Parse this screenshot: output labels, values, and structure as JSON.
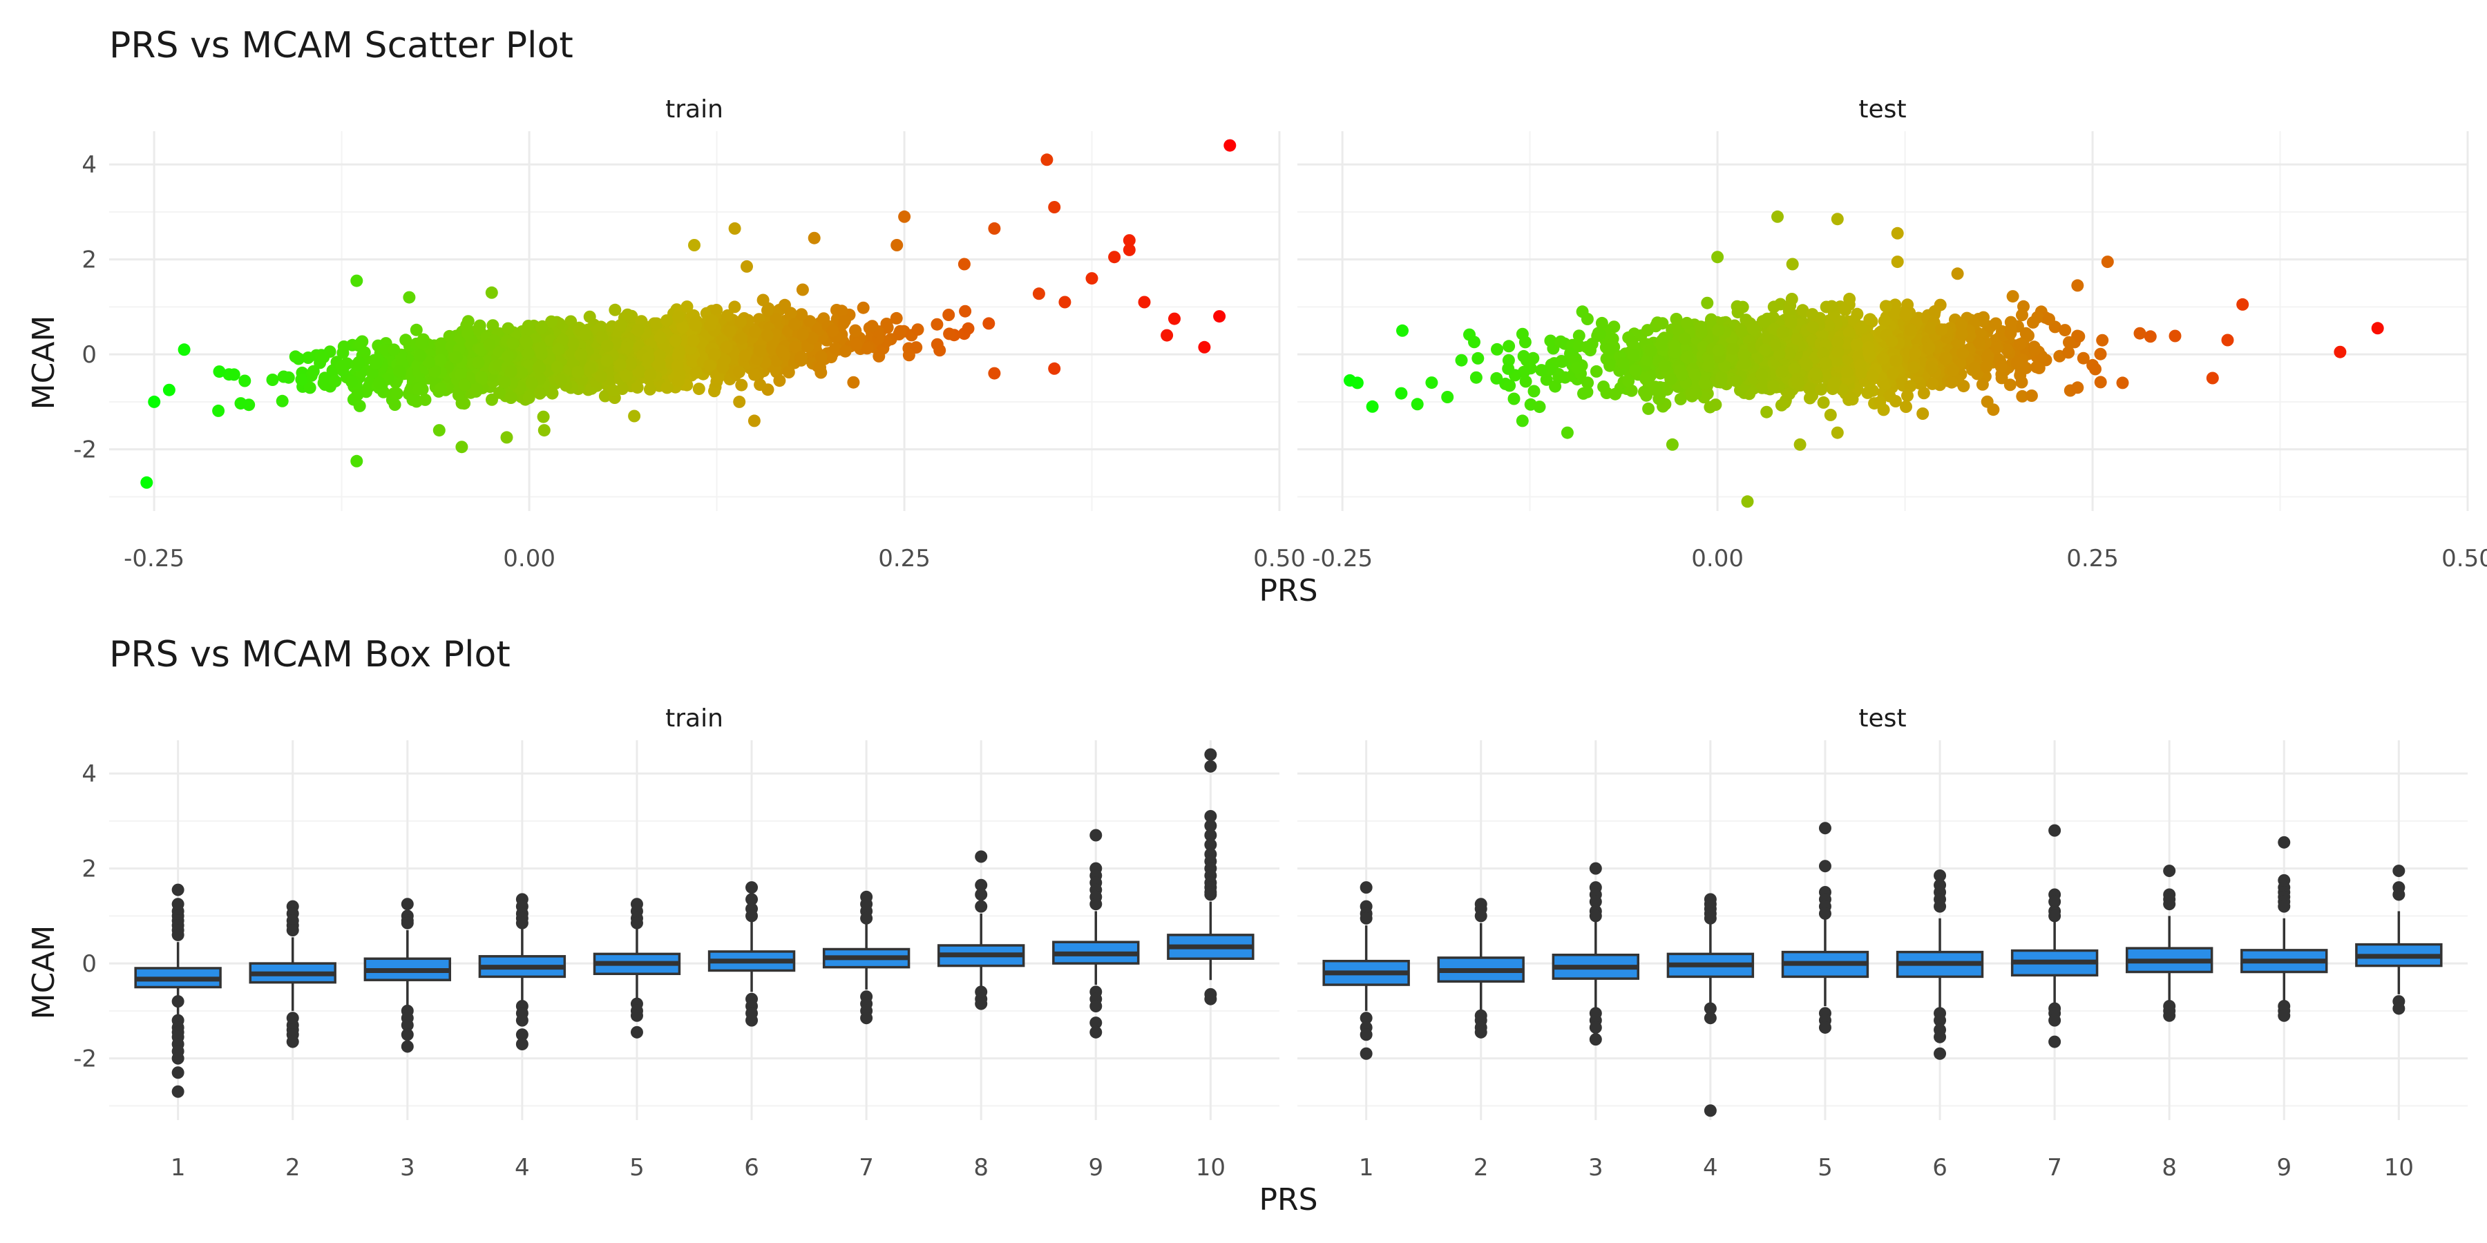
{
  "chart_data": [
    {
      "type": "scatter",
      "title": "PRS vs MCAM Scatter Plot",
      "xlabel": "PRS",
      "ylabel": "MCAM",
      "xlim": [
        -0.28,
        0.5
      ],
      "ylim": [
        -3.3,
        4.7
      ],
      "x_ticks": [
        -0.25,
        0.0,
        0.25,
        0.5
      ],
      "x_tick_labels": [
        "-0.25",
        "0.00",
        "0.25",
        "0.50"
      ],
      "y_ticks": [
        -2,
        0,
        2,
        4
      ],
      "y_tick_labels": [
        "-2",
        "0",
        "2",
        "4"
      ],
      "grid": true,
      "color_scale": {
        "low": "#00ff00",
        "mid": "#c0b000",
        "high": "#ff0000",
        "domain": [
          -0.26,
          0.47
        ]
      },
      "panels": [
        {
          "name": "train",
          "cloud": {
            "x_mean": 0.05,
            "x_sd": 0.08,
            "slope": 2.0,
            "noise_sd": 0.32,
            "n": 2600
          },
          "outliers": [
            [
              0.467,
              4.4
            ],
            [
              0.345,
              4.1
            ],
            [
              0.35,
              3.1
            ],
            [
              0.25,
              2.9
            ],
            [
              0.31,
              2.65
            ],
            [
              0.137,
              2.65
            ],
            [
              0.4,
              2.4
            ],
            [
              0.4,
              2.2
            ],
            [
              0.39,
              2.05
            ],
            [
              0.245,
              2.3
            ],
            [
              0.19,
              2.45
            ],
            [
              0.11,
              2.3
            ],
            [
              0.145,
              1.85
            ],
            [
              0.29,
              1.9
            ],
            [
              0.375,
              1.6
            ],
            [
              0.41,
              1.1
            ],
            [
              0.357,
              1.1
            ],
            [
              0.46,
              0.8
            ],
            [
              0.43,
              0.75
            ],
            [
              0.425,
              0.4
            ],
            [
              0.45,
              0.15
            ],
            [
              0.35,
              -0.3
            ],
            [
              0.14,
              -1.0
            ],
            [
              0.15,
              -1.4
            ],
            [
              -0.115,
              1.55
            ],
            [
              -0.08,
              1.2
            ],
            [
              -0.025,
              1.3
            ],
            [
              -0.06,
              -1.6
            ],
            [
              -0.045,
              -1.95
            ],
            [
              -0.015,
              -1.75
            ],
            [
              -0.115,
              -2.25
            ],
            [
              -0.255,
              -2.7
            ],
            [
              -0.25,
              -1.0
            ],
            [
              -0.23,
              0.1
            ],
            [
              -0.24,
              -0.75
            ],
            [
              0.01,
              -1.6
            ],
            [
              0.07,
              -1.3
            ],
            [
              0.31,
              -0.4
            ]
          ]
        },
        {
          "name": "test",
          "cloud": {
            "x_mean": 0.06,
            "x_sd": 0.075,
            "slope": 1.0,
            "noise_sd": 0.38,
            "n": 1900
          },
          "outliers": [
            [
              0.44,
              0.55
            ],
            [
              0.415,
              0.05
            ],
            [
              0.35,
              1.05
            ],
            [
              0.34,
              0.3
            ],
            [
              0.26,
              1.95
            ],
            [
              0.12,
              2.55
            ],
            [
              0.08,
              2.85
            ],
            [
              0.04,
              2.9
            ],
            [
              0.0,
              2.05
            ],
            [
              0.05,
              1.9
            ],
            [
              0.12,
              1.95
            ],
            [
              0.24,
              1.45
            ],
            [
              0.33,
              -0.5
            ],
            [
              0.27,
              -0.6
            ],
            [
              0.24,
              -0.7
            ],
            [
              -0.245,
              -0.55
            ],
            [
              -0.24,
              -0.6
            ],
            [
              -0.23,
              -1.1
            ],
            [
              -0.21,
              0.5
            ],
            [
              -0.2,
              -1.05
            ],
            [
              -0.13,
              -1.4
            ],
            [
              -0.1,
              -1.65
            ],
            [
              -0.03,
              -1.9
            ],
            [
              0.055,
              -1.9
            ],
            [
              0.08,
              -1.65
            ],
            [
              0.02,
              -3.1
            ],
            [
              -0.18,
              -0.9
            ],
            [
              -0.09,
              0.9
            ],
            [
              0.16,
              1.7
            ]
          ]
        }
      ]
    },
    {
      "type": "box",
      "title": "PRS vs MCAM Box Plot",
      "xlabel": "PRS",
      "ylabel": "MCAM",
      "categories": [
        "1",
        "2",
        "3",
        "4",
        "5",
        "6",
        "7",
        "8",
        "9",
        "10"
      ],
      "ylim": [
        -3.3,
        4.7
      ],
      "y_ticks": [
        -2,
        0,
        2,
        4
      ],
      "y_tick_labels": [
        "-2",
        "0",
        "2",
        "4"
      ],
      "fill": "#2a8ee8",
      "grid": true,
      "panels": [
        {
          "name": "train",
          "boxes": [
            {
              "lo": -1.1,
              "q1": -0.5,
              "med": -0.33,
              "q3": -0.1,
              "hi": 0.45,
              "out": [
                1.55,
                1.25,
                1.1,
                1.0,
                0.9,
                0.8,
                0.7,
                0.6,
                -0.8,
                -1.2,
                -1.35,
                -1.45,
                -1.55,
                -1.7,
                -1.85,
                -2.0,
                -2.3,
                -2.7
              ]
            },
            {
              "lo": -1.0,
              "q1": -0.4,
              "med": -0.22,
              "q3": 0.0,
              "hi": 0.55,
              "out": [
                1.2,
                1.05,
                0.9,
                0.8,
                0.7,
                -1.15,
                -1.3,
                -1.4,
                -1.5,
                -1.65
              ]
            },
            {
              "lo": -0.9,
              "q1": -0.35,
              "med": -0.15,
              "q3": 0.1,
              "hi": 0.7,
              "out": [
                1.25,
                1.0,
                0.9,
                0.85,
                -1.0,
                -1.15,
                -1.3,
                -1.5,
                -1.75
              ]
            },
            {
              "lo": -0.8,
              "q1": -0.28,
              "med": -0.08,
              "q3": 0.15,
              "hi": 0.75,
              "out": [
                1.35,
                1.2,
                1.05,
                0.95,
                0.85,
                -0.9,
                -1.05,
                -1.2,
                -1.5,
                -1.7
              ]
            },
            {
              "lo": -0.75,
              "q1": -0.22,
              "med": 0.0,
              "q3": 0.2,
              "hi": 0.8,
              "out": [
                1.25,
                1.1,
                0.95,
                0.85,
                -0.85,
                -1.0,
                -1.1,
                -1.45
              ]
            },
            {
              "lo": -0.6,
              "q1": -0.15,
              "med": 0.05,
              "q3": 0.25,
              "hi": 0.9,
              "out": [
                1.6,
                1.35,
                1.15,
                1.0,
                -0.75,
                -0.9,
                -1.05,
                -1.2
              ]
            },
            {
              "lo": -0.55,
              "q1": -0.08,
              "med": 0.12,
              "q3": 0.3,
              "hi": 0.9,
              "out": [
                1.4,
                1.25,
                1.1,
                0.95,
                -0.7,
                -0.85,
                -1.0,
                -1.15
              ]
            },
            {
              "lo": -0.5,
              "q1": -0.05,
              "med": 0.18,
              "q3": 0.38,
              "hi": 1.05,
              "out": [
                2.25,
                1.65,
                1.45,
                1.2,
                -0.6,
                -0.75,
                -0.85
              ]
            },
            {
              "lo": -0.45,
              "q1": 0.0,
              "med": 0.2,
              "q3": 0.45,
              "hi": 1.1,
              "out": [
                2.7,
                2.0,
                1.85,
                1.7,
                1.55,
                1.4,
                1.25,
                -0.6,
                -0.75,
                -0.9,
                -1.25,
                -1.45
              ]
            },
            {
              "lo": -0.35,
              "q1": 0.1,
              "med": 0.35,
              "q3": 0.6,
              "hi": 1.3,
              "out": [
                4.4,
                4.15,
                3.1,
                2.9,
                2.7,
                2.5,
                2.3,
                2.15,
                2.0,
                1.85,
                1.7,
                1.6,
                1.5,
                1.45,
                -0.65,
                -0.75
              ]
            }
          ]
        },
        {
          "name": "test",
          "boxes": [
            {
              "lo": -1.0,
              "q1": -0.45,
              "med": -0.2,
              "q3": 0.05,
              "hi": 0.8,
              "out": [
                1.6,
                1.2,
                1.05,
                0.95,
                -1.15,
                -1.35,
                -1.5,
                -1.9
              ]
            },
            {
              "lo": -1.0,
              "q1": -0.38,
              "med": -0.15,
              "q3": 0.12,
              "hi": 0.85,
              "out": [
                1.25,
                1.15,
                1.0,
                -1.1,
                -1.2,
                -1.35,
                -1.45
              ]
            },
            {
              "lo": -0.95,
              "q1": -0.32,
              "med": -0.08,
              "q3": 0.18,
              "hi": 0.9,
              "out": [
                2.0,
                1.6,
                1.45,
                1.3,
                1.1,
                1.0,
                -1.05,
                -1.2,
                -1.35,
                -1.6
              ]
            },
            {
              "lo": -0.85,
              "q1": -0.28,
              "med": -0.03,
              "q3": 0.2,
              "hi": 0.9,
              "out": [
                1.35,
                1.25,
                1.15,
                1.05,
                0.95,
                -0.95,
                -1.15,
                -3.1
              ]
            },
            {
              "lo": -0.9,
              "q1": -0.28,
              "med": 0.0,
              "q3": 0.24,
              "hi": 0.95,
              "out": [
                2.85,
                2.05,
                1.5,
                1.35,
                1.2,
                1.05,
                -1.05,
                -1.2,
                -1.35
              ]
            },
            {
              "lo": -0.95,
              "q1": -0.28,
              "med": 0.0,
              "q3": 0.24,
              "hi": 0.95,
              "out": [
                1.85,
                1.65,
                1.5,
                1.35,
                1.2,
                -1.05,
                -1.2,
                -1.4,
                -1.55,
                -1.9
              ]
            },
            {
              "lo": -0.85,
              "q1": -0.25,
              "med": 0.03,
              "q3": 0.27,
              "hi": 0.95,
              "out": [
                2.8,
                1.45,
                1.3,
                1.1,
                1.0,
                -0.95,
                -1.05,
                -1.2,
                -1.65
              ]
            },
            {
              "lo": -0.8,
              "q1": -0.18,
              "med": 0.05,
              "q3": 0.32,
              "hi": 1.0,
              "out": [
                1.95,
                1.45,
                1.35,
                1.25,
                -0.9,
                -1.0,
                -1.1
              ]
            },
            {
              "lo": -0.8,
              "q1": -0.18,
              "med": 0.05,
              "q3": 0.28,
              "hi": 0.95,
              "out": [
                2.55,
                1.75,
                1.6,
                1.5,
                1.4,
                1.3,
                1.2,
                -0.9,
                -1.0,
                -1.1
              ]
            },
            {
              "lo": -0.65,
              "q1": -0.05,
              "med": 0.15,
              "q3": 0.4,
              "hi": 1.1,
              "out": [
                1.95,
                1.6,
                1.45,
                -0.8,
                -0.95
              ]
            }
          ]
        }
      ]
    }
  ]
}
